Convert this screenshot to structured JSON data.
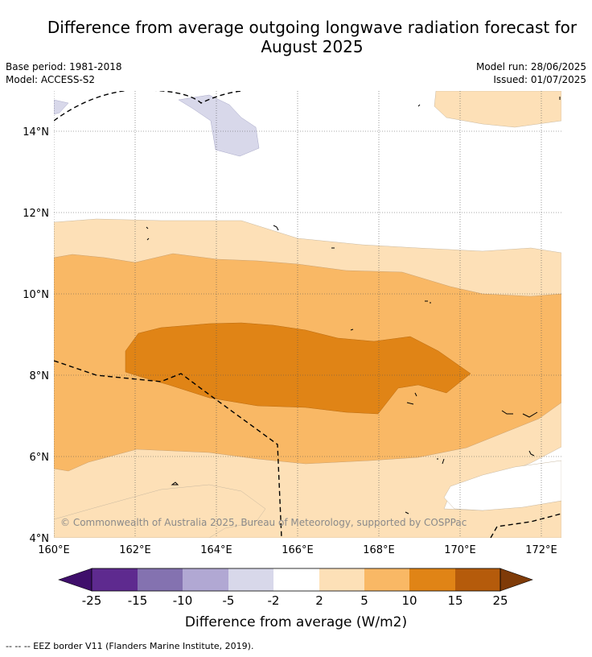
{
  "title": "Difference from average outgoing longwave radiation forecast for August 2025",
  "title_lines": [
    "Difference from average outgoing longwave radiation forecast for",
    "August 2025"
  ],
  "base_period": "Base period: 1981-2018",
  "model": "Model: ACCESS-S2",
  "model_run": "Model run: 28/06/2025",
  "issued": "Issued: 01/07/2025",
  "map": {
    "lat_labels": [
      "14°N",
      "12°N",
      "10°N",
      "8°N",
      "6°N",
      "4°N"
    ],
    "lon_labels": [
      "160°E",
      "162°E",
      "164°E",
      "166°E",
      "168°E",
      "170°E",
      "172°E"
    ],
    "copyright": "© Commonwealth of Australia 2025, Bureau of Meteorology, supported by COSPPac"
  },
  "colorbar": {
    "label": "Difference from average (W/m2)",
    "ticks": [
      "-25",
      "-15",
      "-10",
      "-5",
      "-2",
      "2",
      "5",
      "10",
      "15",
      "25"
    ],
    "colors": [
      "#3f0f6b",
      "#5e2a8f",
      "#8472b0",
      "#b1a8d3",
      "#d8d8ea",
      "#ffffff",
      "#fde0b7",
      "#f9b865",
      "#e08416",
      "#b55b0b",
      "#7f3b08"
    ]
  },
  "legend_note": "--  --  -- EEZ border V11 (Flanders Marine Institute, 2019)."
}
